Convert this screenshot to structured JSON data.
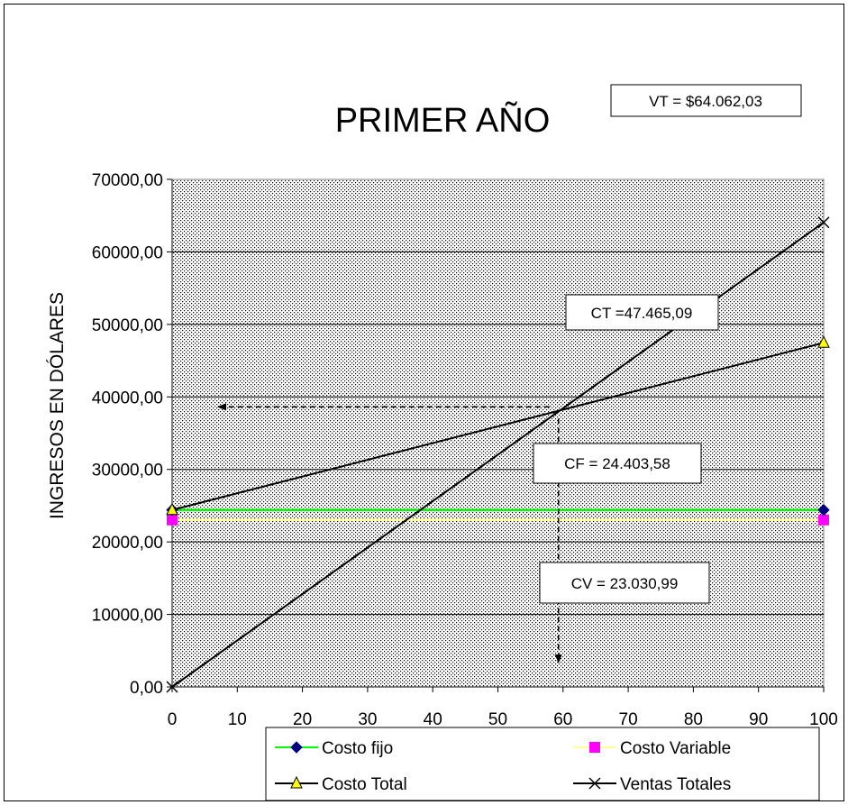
{
  "chart_data": {
    "type": "line",
    "title": "PRIMER AÑO",
    "ylabel": "INGRESOS EN DÓLARES",
    "xlabel": "",
    "x": [
      0,
      100
    ],
    "xticks": [
      "0",
      "10",
      "20",
      "30",
      "40",
      "50",
      "60",
      "70",
      "80",
      "90",
      "100"
    ],
    "yticks": [
      "0,00",
      "10000,00",
      "20000,00",
      "30000,00",
      "40000,00",
      "50000,00",
      "60000,00",
      "70000,00"
    ],
    "xlim": [
      0,
      100
    ],
    "ylim": [
      0,
      70000
    ],
    "grid": "horizontal",
    "legend_position": "bottom",
    "series": [
      {
        "name": "Costo fijo",
        "values": [
          24403.58,
          24403.58
        ],
        "color": "#00ff00",
        "marker": "diamond",
        "marker_color": "#000080"
      },
      {
        "name": "Costo Variable",
        "values": [
          23030.99,
          23030.99
        ],
        "color": "#ffff99",
        "marker": "square",
        "marker_color": "#ff00ff"
      },
      {
        "name": "Costo Total",
        "values": [
          24403.58,
          47465.09
        ],
        "color": "#000000",
        "marker": "triangle",
        "marker_color": "#ffff00"
      },
      {
        "name": "Ventas Totales",
        "values": [
          0,
          64062.03
        ],
        "color": "#000000",
        "marker": "x",
        "marker_color": "#000000"
      }
    ],
    "annotations": {
      "vt": "VT = $64.062,03",
      "ct": "CT =47.465,09",
      "cf": "CF = 24.403,58",
      "cv": "CV = 23.030,99"
    },
    "breakeven": {
      "x": 59.3,
      "y": 38000
    }
  }
}
